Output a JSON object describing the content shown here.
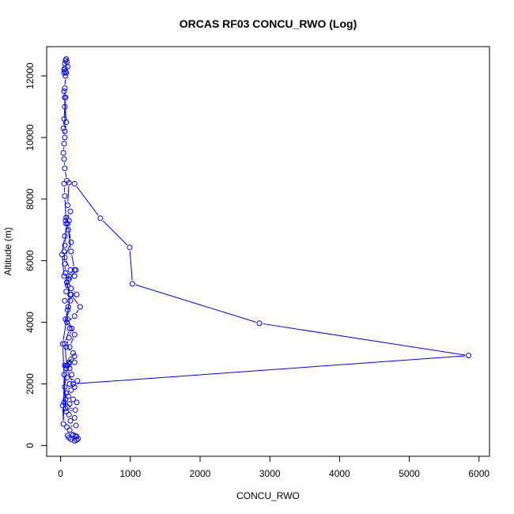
{
  "chart_data": {
    "type": "line",
    "title": "ORCAS RF03 CONCU_RWO (Log)",
    "xlabel": "CONCU_RWO",
    "ylabel": "Altitude (m)",
    "xlim": [
      -200,
      6150
    ],
    "ylim": [
      -350,
      12950
    ],
    "x_ticks": [
      0,
      1000,
      2000,
      3000,
      4000,
      5000,
      6000
    ],
    "y_ticks": [
      0,
      2000,
      4000,
      6000,
      8000,
      10000,
      12000
    ],
    "grid": false,
    "legend": "none",
    "series_color": "#0000ff",
    "series": [
      {
        "x": [
          200,
          230,
          150,
          250,
          120,
          210,
          100,
          180,
          230,
          130,
          90,
          220,
          140,
          200,
          120,
          80,
          210,
          100,
          130,
          230,
          180,
          110,
          80,
          150,
          200,
          130,
          240,
          90,
          160,
          130,
          100,
          200,
          120,
          60,
          200,
          150,
          120,
          80,
          180,
          5850,
          2850,
          1030,
          990,
          570,
          200,
          120,
          100,
          140,
          70,
          110,
          150,
          200,
          120,
          100,
          150,
          280,
          200,
          90,
          160,
          120,
          80,
          180,
          130,
          200,
          100,
          110,
          60,
          230,
          150,
          90,
          200,
          220,
          120,
          80,
          140,
          100,
          70,
          130,
          60,
          90,
          60,
          70,
          50,
          30,
          40,
          50,
          70,
          30,
          140,
          50,
          20,
          60,
          120,
          80,
          100,
          150,
          60,
          140,
          90,
          70,
          60,
          50,
          60,
          80,
          60,
          50,
          90,
          60,
          50,
          40,
          50,
          60,
          40,
          50,
          60,
          70,
          50,
          60,
          80,
          60,
          60,
          70,
          80,
          100,
          90,
          70,
          80,
          60,
          50,
          50,
          60,
          70
        ],
        "y": [
          150,
          180,
          200,
          220,
          250,
          300,
          320,
          350,
          300,
          500,
          600,
          650,
          800,
          900,
          1000,
          1100,
          1150,
          1250,
          1350,
          1400,
          1500,
          1600,
          1700,
          1800,
          1900,
          2000,
          2100,
          2200,
          2300,
          2500,
          2600,
          2700,
          2650,
          2600,
          2900,
          2800,
          2700,
          2500,
          2000,
          2920,
          3970,
          5250,
          6430,
          7380,
          8500,
          8530,
          7800,
          7600,
          7300,
          7000,
          6300,
          5700,
          5500,
          5200,
          4900,
          4500,
          4200,
          4000,
          3800,
          3500,
          3200,
          3000,
          3200,
          3600,
          4100,
          4500,
          4700,
          4900,
          5100,
          5300,
          5500,
          5700,
          5400,
          5000,
          4700,
          4400,
          4100,
          3800,
          3300,
          2600,
          1900,
          1500,
          1400,
          1300,
          700,
          2300,
          1200,
          3300,
          4900,
          5500,
          6200,
          6800,
          7300,
          7400,
          7200,
          6600,
          6100,
          5700,
          5300,
          5600,
          5900,
          6300,
          6500,
          7200,
          8100,
          8500,
          8600,
          9000,
          9300,
          9500,
          9800,
          10000,
          10300,
          10600,
          11000,
          11300,
          11500,
          11300,
          10500,
          10200,
          11600,
          12000,
          12100,
          12300,
          12450,
          12500,
          12550,
          12400,
          12200,
          12100,
          12250,
          12150
        ]
      }
    ]
  }
}
